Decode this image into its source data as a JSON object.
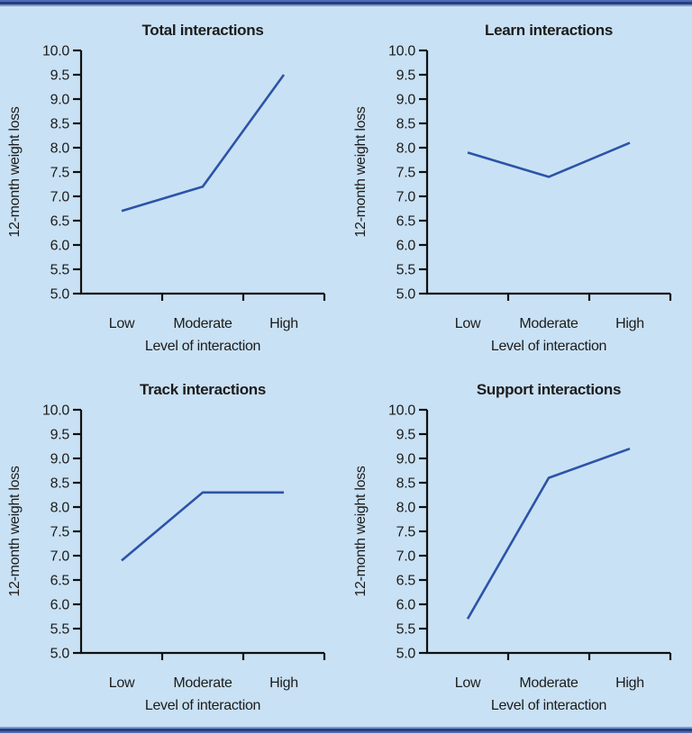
{
  "chart_data": [
    {
      "type": "line",
      "title": "Total interactions",
      "categories": [
        "Low",
        "Moderate",
        "High"
      ],
      "values": [
        6.7,
        7.2,
        9.5
      ],
      "xlabel": "Level of interaction",
      "ylabel": "12-month weight loss",
      "ylim": [
        5.0,
        10.0
      ],
      "ytick_step": 0.5,
      "grid": false,
      "legend": "none"
    },
    {
      "type": "line",
      "title": "Learn interactions",
      "categories": [
        "Low",
        "Moderate",
        "High"
      ],
      "values": [
        7.9,
        7.4,
        8.1
      ],
      "xlabel": "Level of interaction",
      "ylabel": "12-month weight loss",
      "ylim": [
        5.0,
        10.0
      ],
      "ytick_step": 0.5,
      "grid": false,
      "legend": "none"
    },
    {
      "type": "line",
      "title": "Track interactions",
      "categories": [
        "Low",
        "Moderate",
        "High"
      ],
      "values": [
        6.9,
        8.3,
        8.3
      ],
      "xlabel": "Level of interaction",
      "ylabel": "12-month weight loss",
      "ylim": [
        5.0,
        10.0
      ],
      "ytick_step": 0.5,
      "grid": false,
      "legend": "none"
    },
    {
      "type": "line",
      "title": "Support interactions",
      "categories": [
        "Low",
        "Moderate",
        "High"
      ],
      "values": [
        5.7,
        8.6,
        9.2
      ],
      "xlabel": "Level of interaction",
      "ylabel": "12-month weight loss",
      "ylim": [
        5.0,
        10.0
      ],
      "ytick_step": 0.5,
      "grid": false,
      "legend": "none"
    }
  ],
  "colors": {
    "background": "#c9e1f4",
    "line": "#2b54a9",
    "axis": "#111111",
    "text": "#1c1c1c",
    "border_dark": "#263f7d",
    "border_mid": "#4a6cb5",
    "border_light": "#7d97d2"
  }
}
